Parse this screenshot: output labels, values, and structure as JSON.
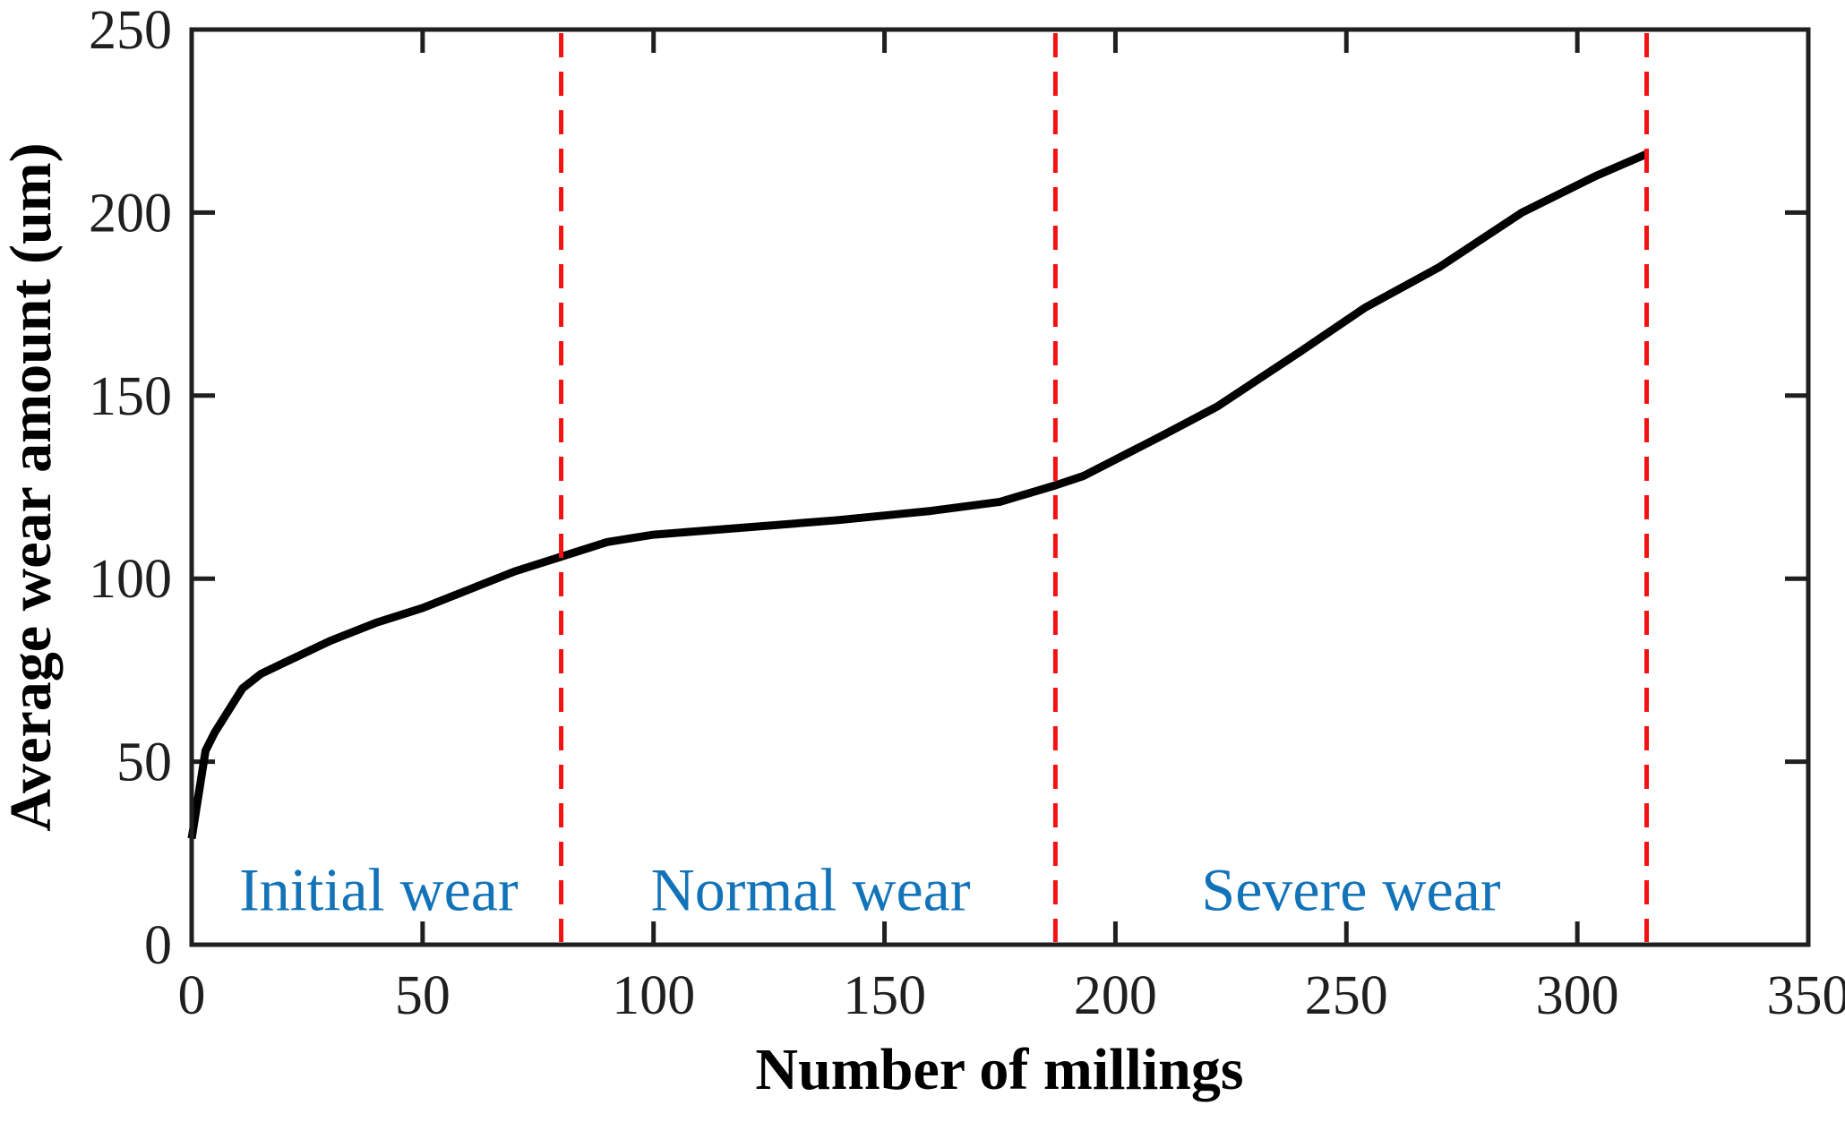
{
  "figure": {
    "background_color": "#ffffff",
    "axis_color": "#1f1f1f"
  },
  "chart_data": {
    "type": "line",
    "title": "",
    "xlabel": "Number of millings",
    "ylabel": "Average wear amount (um)",
    "xlim": [
      0,
      350
    ],
    "ylim": [
      0,
      250
    ],
    "x_ticks": [
      0,
      50,
      100,
      150,
      200,
      250,
      300,
      350
    ],
    "y_ticks": [
      0,
      50,
      100,
      150,
      200,
      250
    ],
    "grid": false,
    "legend": "none",
    "series": [
      {
        "name": "average-wear-curve",
        "color": "#000000",
        "line_width": 9,
        "x": [
          0,
          3,
          5,
          11,
          15,
          20,
          30,
          40,
          50,
          60,
          70,
          80,
          90,
          100,
          120,
          140,
          160,
          175,
          187,
          193,
          210,
          222,
          240,
          254,
          270,
          288,
          304,
          315
        ],
        "y": [
          29,
          53,
          58,
          70,
          74,
          77,
          83,
          88,
          92,
          97,
          102,
          106,
          110,
          112,
          114,
          116,
          118.5,
          121,
          125.5,
          128,
          139,
          147,
          162,
          174,
          185,
          200,
          210,
          216
        ]
      }
    ],
    "region_boundaries": {
      "style": "dashed",
      "color": "#f51111",
      "line_width": 5,
      "dash": "27 16",
      "x_values": [
        80,
        187,
        315
      ]
    },
    "annotations": [
      {
        "id": "initial-wear",
        "text": "Initial wear",
        "x": 40.5,
        "y": 15,
        "color": "#1273b9"
      },
      {
        "id": "normal-wear",
        "text": "Normal wear",
        "x": 134,
        "y": 15,
        "color": "#1273b9"
      },
      {
        "id": "severe-wear",
        "text": "Severe wear",
        "x": 251,
        "y": 15,
        "color": "#1273b9"
      }
    ]
  }
}
